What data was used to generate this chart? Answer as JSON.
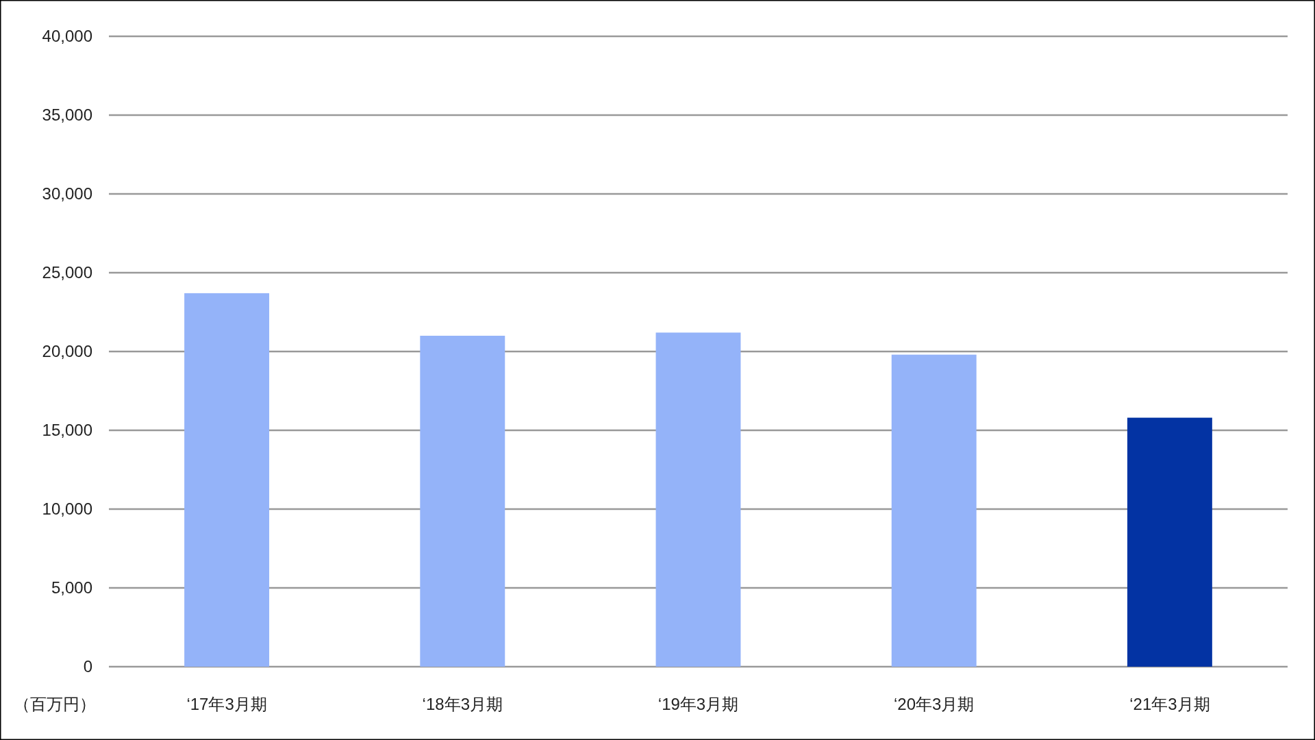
{
  "chart_data": {
    "type": "bar",
    "categories": [
      "‘17年3月期",
      "‘18年3月期",
      "‘19年3月期",
      "‘20年3月期",
      "‘21年3月期"
    ],
    "values": [
      23700,
      21000,
      21200,
      19800,
      15800
    ],
    "colors": [
      "#94b3f9",
      "#94b3f9",
      "#94b3f9",
      "#94b3f9",
      "#0333a3"
    ],
    "ylabel": "（百万円）",
    "ylim": [
      0,
      40000
    ],
    "yticks": [
      0,
      {
        "value": 5000,
        "label": "5,000"
      },
      {
        "value": 10000,
        "label": "10,000"
      },
      {
        "value": 15000,
        "label": "15,000"
      },
      {
        "value": 20000,
        "label": "20,000"
      },
      {
        "value": 25000,
        "label": "25,000"
      },
      {
        "value": 30000,
        "label": "30,000"
      },
      {
        "value": 35000,
        "label": "35,000"
      },
      {
        "value": 40000,
        "label": "40,000"
      }
    ],
    "grid": "y"
  }
}
